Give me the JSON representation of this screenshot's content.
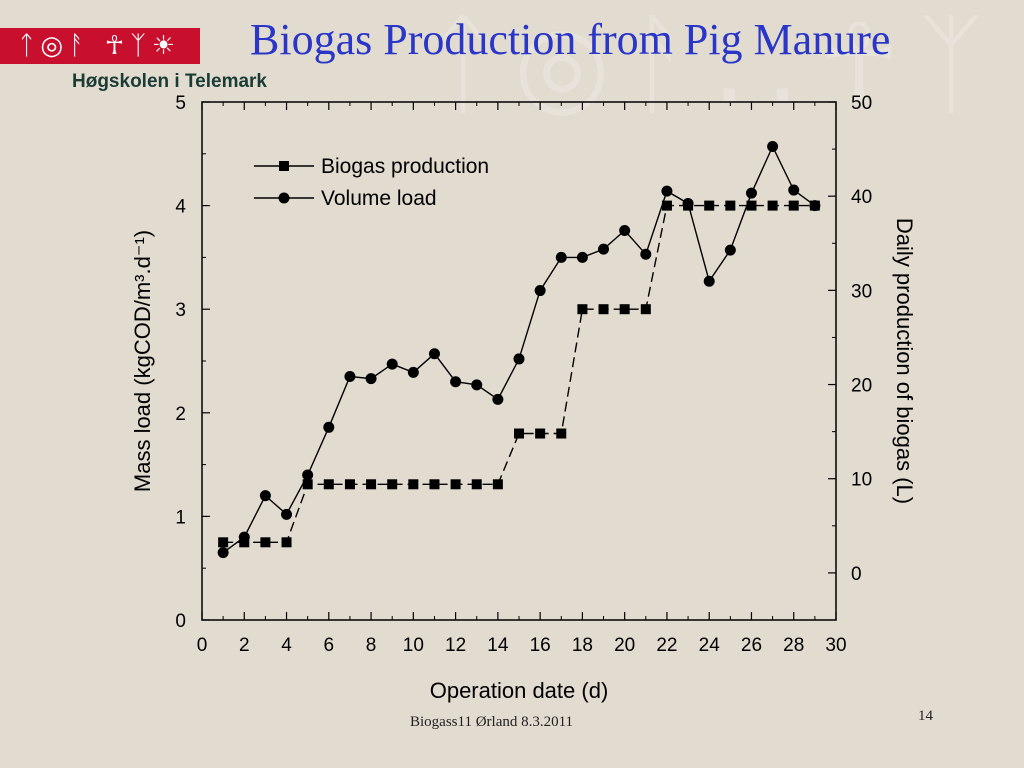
{
  "slide": {
    "title": "Biogas Production from Pig Manure",
    "institution": "Høgskolen i Telemark",
    "logo_glyphs": "ᛏ◎ᚨ ☥ᛉ☀",
    "footer": "Biogass11 Ørland 8.3.2011",
    "page_number": "14"
  },
  "chart_data": {
    "type": "line",
    "title": "",
    "xlabel": "Operation date (d)",
    "ylabel_left": "Mass load (kgCOD/m³.d⁻¹)",
    "ylabel_right": "Daily production of biogas (L)",
    "xlim": [
      0,
      30
    ],
    "xticks": [
      0,
      2,
      4,
      6,
      8,
      10,
      12,
      14,
      16,
      18,
      20,
      22,
      24,
      26,
      28,
      30
    ],
    "ylim_left": [
      0,
      5
    ],
    "yticks_left": [
      0,
      1,
      2,
      3,
      4,
      5
    ],
    "ylim_right": [
      -5,
      50
    ],
    "yticks_right": [
      0,
      10,
      20,
      30,
      40,
      50
    ],
    "grid": false,
    "legend_position": "top-left",
    "series": [
      {
        "name": "Biogas production",
        "axis": "left",
        "marker": "square",
        "line_style": "dashed",
        "x": [
          1,
          2,
          3,
          4,
          5,
          6,
          7,
          8,
          9,
          10,
          11,
          12,
          13,
          14,
          15,
          16,
          17,
          18,
          19,
          20,
          21,
          22,
          23,
          24,
          25,
          26,
          27,
          28,
          29
        ],
        "y": [
          0.75,
          0.75,
          0.75,
          0.75,
          1.31,
          1.31,
          1.31,
          1.31,
          1.31,
          1.31,
          1.31,
          1.31,
          1.31,
          1.31,
          1.8,
          1.8,
          1.8,
          3.0,
          3.0,
          3.0,
          3.0,
          4.0,
          4.0,
          4.0,
          4.0,
          4.0,
          4.0,
          4.0,
          4.0
        ]
      },
      {
        "name": "Volume load",
        "axis": "left",
        "marker": "circle",
        "line_style": "solid",
        "x": [
          1,
          2,
          3,
          4,
          5,
          6,
          7,
          8,
          9,
          10,
          11,
          12,
          13,
          14,
          15,
          16,
          17,
          18,
          19,
          20,
          21,
          22,
          23,
          24,
          25,
          26,
          27,
          28,
          29
        ],
        "y": [
          0.65,
          0.8,
          1.2,
          1.02,
          1.4,
          1.86,
          2.35,
          2.33,
          2.47,
          2.39,
          2.57,
          2.3,
          2.27,
          2.13,
          2.52,
          3.18,
          3.5,
          3.5,
          3.58,
          3.76,
          3.53,
          4.14,
          4.02,
          3.27,
          3.57,
          4.12,
          4.57,
          4.15,
          4.0
        ]
      }
    ],
    "colors": {
      "axis": "#000000",
      "series": "#000000"
    }
  }
}
